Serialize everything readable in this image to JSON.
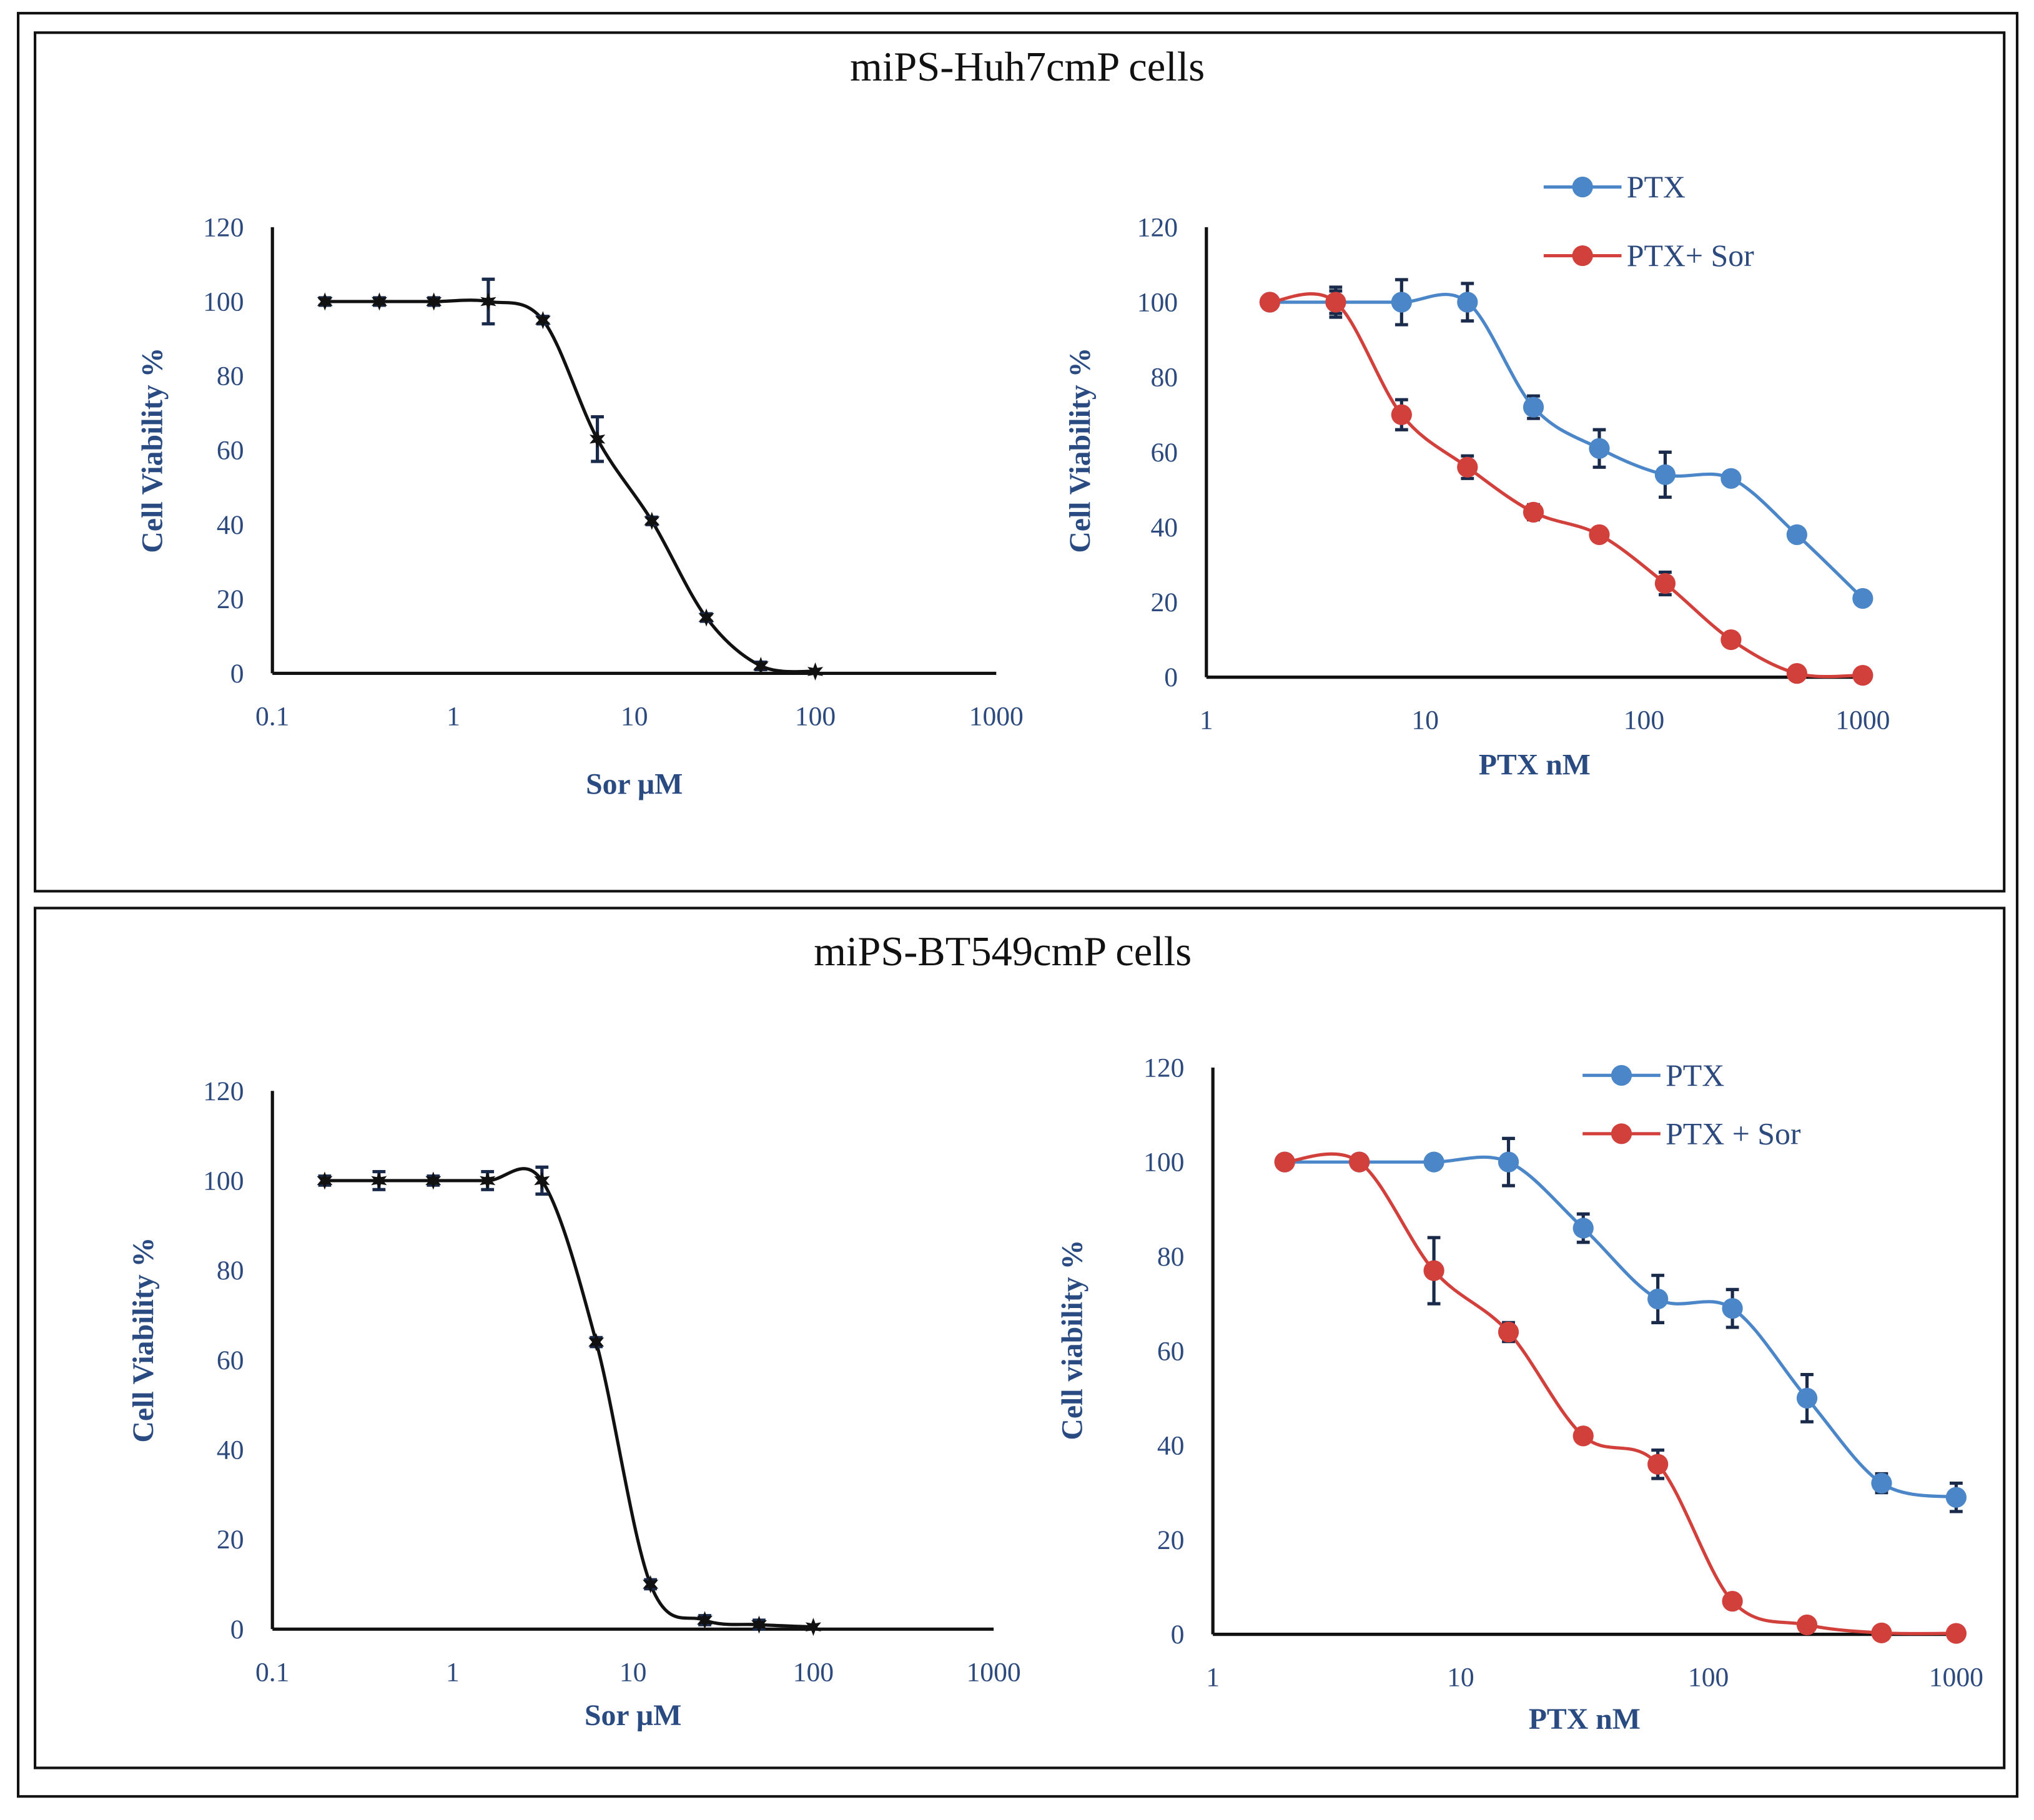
{
  "panels": [
    {
      "title": "miPS-Huh7cmP cells"
    },
    {
      "title": "miPS-BT549cmP cells"
    }
  ],
  "chart_data": [
    {
      "type": "line",
      "panel": 0,
      "xscale": "log",
      "xlabel": "Sor µM",
      "ylabel": "Cell Viability %",
      "xticks": [
        "0.1",
        "1",
        "10",
        "100",
        "1000"
      ],
      "xlim": [
        0.1,
        1000
      ],
      "yticks": [
        "0",
        "20",
        "40",
        "60",
        "80",
        "100",
        "120"
      ],
      "ylim": [
        0,
        120
      ],
      "legend": null,
      "series": [
        {
          "name": "Sor",
          "color": "#111111",
          "marker": "star",
          "x": [
            0.195,
            0.39,
            0.78,
            1.56,
            3.125,
            6.25,
            12.5,
            25,
            50,
            100
          ],
          "y": [
            100,
            100,
            100,
            100,
            95,
            63,
            41,
            15,
            2,
            0.5
          ],
          "yerr": [
            1,
            1,
            1,
            6,
            1,
            6,
            1,
            1,
            1,
            0.5
          ]
        }
      ]
    },
    {
      "type": "line",
      "panel": 0,
      "xscale": "log",
      "xlabel": "PTX nM",
      "ylabel": "Cell Viability %",
      "xticks": [
        "1",
        "10",
        "100",
        "1000"
      ],
      "xlim": [
        1,
        1000
      ],
      "yticks": [
        "0",
        "20",
        "40",
        "60",
        "80",
        "100",
        "120"
      ],
      "ylim": [
        0,
        120
      ],
      "legend": "top-right",
      "series": [
        {
          "name": "PTX",
          "color": "#4a86c8",
          "marker": "circle",
          "x": [
            1.95,
            3.9,
            7.8,
            15.6,
            31.25,
            62.5,
            125,
            250,
            500,
            1000
          ],
          "y": [
            100,
            100,
            100,
            100,
            72,
            61,
            54,
            53,
            38,
            21
          ],
          "yerr": [
            1,
            4,
            6,
            5,
            3,
            5,
            6,
            1,
            1,
            1
          ]
        },
        {
          "name": "PTX+ Sor",
          "color": "#d2403c",
          "marker": "circle",
          "x": [
            1.95,
            3.9,
            7.8,
            15.6,
            31.25,
            62.5,
            125,
            250,
            500,
            1000
          ],
          "y": [
            100,
            100,
            70,
            56,
            44,
            38,
            25,
            10,
            1,
            0.5
          ],
          "yerr": [
            1,
            3,
            4,
            3,
            2,
            1,
            3,
            1,
            1,
            0.5
          ]
        }
      ]
    },
    {
      "type": "line",
      "panel": 1,
      "xscale": "log",
      "xlabel": "Sor µM",
      "ylabel": "Cell Viability %",
      "xticks": [
        "0.1",
        "1",
        "10",
        "100",
        "1000"
      ],
      "xlim": [
        0.1,
        1000
      ],
      "yticks": [
        "0",
        "20",
        "40",
        "60",
        "80",
        "100",
        "120"
      ],
      "ylim": [
        0,
        120
      ],
      "legend": null,
      "series": [
        {
          "name": "Sor",
          "color": "#111111",
          "marker": "star",
          "x": [
            0.195,
            0.39,
            0.78,
            1.56,
            3.125,
            6.25,
            12.5,
            25,
            50,
            100
          ],
          "y": [
            100,
            100,
            100,
            100,
            100,
            64,
            10,
            2,
            1,
            0.5
          ],
          "yerr": [
            1,
            2,
            1,
            2,
            3,
            1,
            1,
            1,
            1,
            0.5
          ]
        }
      ]
    },
    {
      "type": "line",
      "panel": 1,
      "xscale": "log",
      "xlabel": "PTX nM",
      "ylabel": "Cell viability %",
      "xticks": [
        "1",
        "10",
        "100",
        "1000"
      ],
      "xlim": [
        1,
        1000
      ],
      "yticks": [
        "0",
        "20",
        "40",
        "60",
        "80",
        "100",
        "120"
      ],
      "ylim": [
        0,
        120
      ],
      "legend": "top-right",
      "series": [
        {
          "name": "PTX",
          "color": "#4a86c8",
          "marker": "circle",
          "x": [
            1.95,
            3.9,
            7.8,
            15.6,
            31.25,
            62.5,
            125,
            250,
            500,
            1000
          ],
          "y": [
            100,
            100,
            100,
            100,
            86,
            71,
            69,
            50,
            32,
            29
          ],
          "yerr": [
            1,
            1,
            1,
            5,
            3,
            5,
            4,
            5,
            2,
            3
          ]
        },
        {
          "name": "PTX + Sor",
          "color": "#d2403c",
          "marker": "circle",
          "x": [
            1.95,
            3.9,
            7.8,
            15.6,
            31.25,
            62.5,
            125,
            250,
            500,
            1000
          ],
          "y": [
            100,
            100,
            77,
            64,
            42,
            36,
            7,
            2,
            0.3,
            0.2
          ],
          "yerr": [
            1,
            1,
            7,
            2,
            1,
            3,
            0.5,
            0.5,
            0.3,
            0.2
          ]
        }
      ]
    }
  ]
}
